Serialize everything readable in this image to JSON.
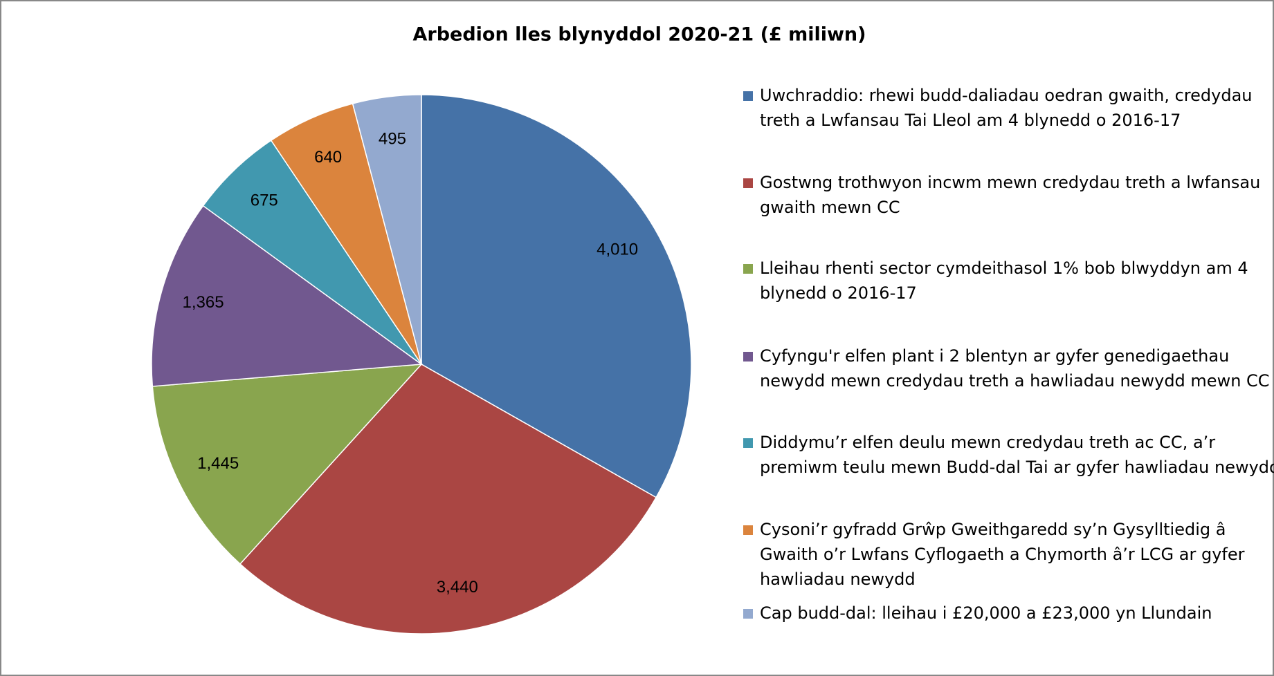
{
  "chart_data": {
    "type": "pie",
    "title": "Arbedion lles blynyddol 2020-21 (£ miliwn)",
    "categories": [
      "Uwchraddio: rhewi budd-daliadau oedran gwaith, credydau treth a Lwfansau Tai Lleol am 4 blynedd o 2016-17",
      "Gostwng trothwyon incwm mewn credydau treth a lwfansau gwaith mewn CC",
      "Lleihau rhenti sector cymdeithasol 1% bob blwyddyn am 4 blynedd o 2016-17",
      "Cyfyngu'r elfen plant i 2 blentyn ar gyfer genedigaethau newydd mewn credydau treth a hawliadau newydd mewn CC",
      "Diddymu’r elfen deulu mewn credydau treth ac CC, a’r premiwm teulu mewn Budd-dal Tai ar gyfer hawliadau newydd",
      "Cysoni’r gyfradd Grŵp Gweithgaredd sy’n Gysylltiedig â Gwaith o’r Lwfans Cyflogaeth a Chymorth â’r LCG ar gyfer hawliadau newydd",
      "Cap budd-dal: lleihau i £20,000 a £23,000 yn Llundain"
    ],
    "values": [
      4010,
      3440,
      1445,
      1365,
      675,
      640,
      495
    ],
    "value_labels": [
      "4,010",
      "3,440",
      "1,445",
      "1,365",
      "675",
      "640",
      "495"
    ],
    "colors": [
      "#4572a7",
      "#aa4643",
      "#89a54e",
      "#71588f",
      "#4198af",
      "#db843d",
      "#93a9cf"
    ],
    "legend": "right"
  }
}
